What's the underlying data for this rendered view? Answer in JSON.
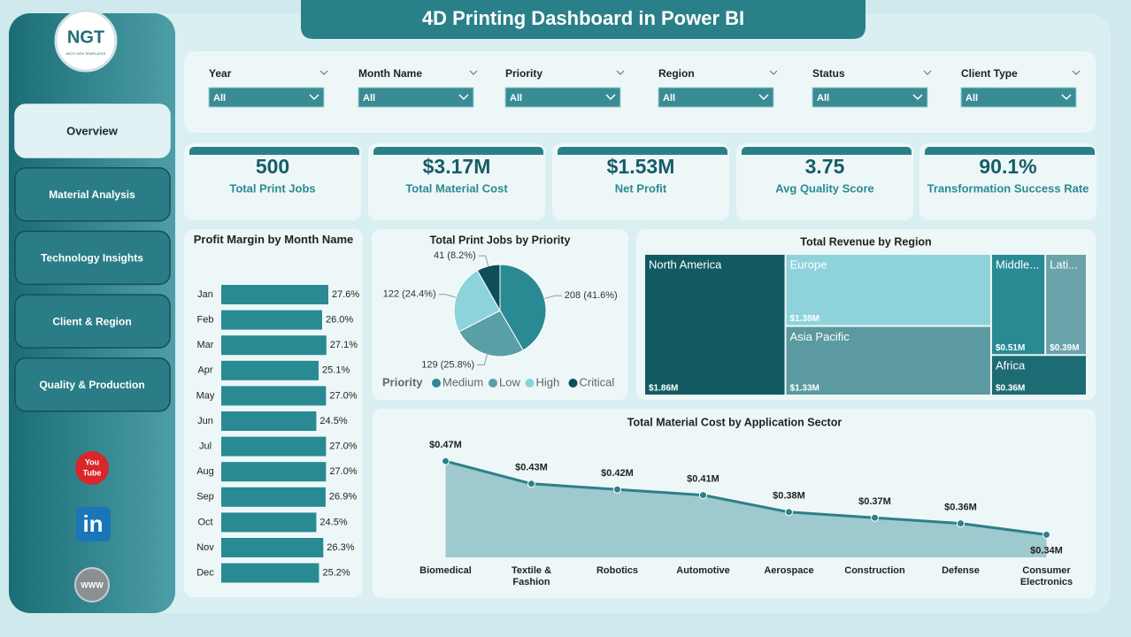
{
  "header": {
    "title": "4D Printing Dashboard in Power BI",
    "logo": "NGT",
    "logo_tagline": "NEXT GEN TEMPLATES"
  },
  "nav": {
    "items": [
      "Overview",
      "Material Analysis",
      "Technology Insights",
      "Client & Region",
      "Quality & Production"
    ],
    "active": 0
  },
  "social": {
    "youtube": [
      "You",
      "Tube"
    ],
    "linkedin": "in",
    "web": "WWW"
  },
  "filters": [
    {
      "label": "Year",
      "value": "All"
    },
    {
      "label": "Month Name",
      "value": "All"
    },
    {
      "label": "Priority",
      "value": "All"
    },
    {
      "label": "Region",
      "value": "All"
    },
    {
      "label": "Status",
      "value": "All"
    },
    {
      "label": "Client Type",
      "value": "All"
    }
  ],
  "kpis": [
    {
      "value": "500",
      "label": "Total Print Jobs"
    },
    {
      "value": "$3.17M",
      "label": "Total Material Cost"
    },
    {
      "value": "$1.53M",
      "label": "Net Profit"
    },
    {
      "value": "3.75",
      "label": "Avg Quality Score"
    },
    {
      "value": "90.1%",
      "label": "Transformation Success Rate"
    }
  ],
  "chart_data": [
    {
      "type": "bar",
      "orientation": "horizontal",
      "title": "Profit Margin by Month Name",
      "categories": [
        "Jan",
        "Feb",
        "Mar",
        "Apr",
        "May",
        "Jun",
        "Jul",
        "Aug",
        "Sep",
        "Oct",
        "Nov",
        "Dec"
      ],
      "values": [
        27.6,
        26.0,
        27.1,
        25.1,
        27.0,
        24.5,
        27.0,
        27.0,
        26.9,
        24.5,
        26.3,
        25.2
      ],
      "value_labels": [
        "27.6%",
        "26.0%",
        "27.1%",
        "25.1%",
        "27.0%",
        "24.5%",
        "27.0%",
        "27.0%",
        "26.9%",
        "24.5%",
        "26.3%",
        "25.2%"
      ],
      "color": "#2a8a93"
    },
    {
      "type": "pie",
      "title": "Total Print Jobs by Priority",
      "legend_title": "Priority",
      "categories": [
        "Medium",
        "Low",
        "High",
        "Critical"
      ],
      "values": [
        208,
        129,
        122,
        41
      ],
      "value_labels": [
        "208 (41.6%)",
        "129 (25.8%)",
        "122 (24.4%)",
        "41 (8.2%)"
      ],
      "colors": [
        "#2a8a93",
        "#5a9ea6",
        "#8dd3dc",
        "#0f4e58"
      ]
    },
    {
      "type": "treemap",
      "title": "Total Revenue by Region",
      "categories": [
        "North America",
        "Europe",
        "Asia Pacific",
        "Middle...",
        "Lati...",
        "Africa"
      ],
      "values": [
        1.86,
        1.38,
        1.33,
        0.51,
        0.39,
        0.36
      ],
      "value_labels": [
        "$1.86M",
        "$1.38M",
        "$1.33M",
        "$0.51M",
        "$0.39M",
        "$0.36M"
      ],
      "colors": [
        "#115a62",
        "#8ed3dc",
        "#5a9aa0",
        "#2a8a93",
        "#6aa3aa",
        "#1d6b73"
      ]
    },
    {
      "type": "area",
      "title": "Total Material Cost by Application Sector",
      "categories": [
        "Biomedical",
        "Textile & Fashion",
        "Robotics",
        "Automotive",
        "Aerospace",
        "Construction",
        "Defense",
        "Consumer Electronics"
      ],
      "values": [
        0.47,
        0.43,
        0.42,
        0.41,
        0.38,
        0.37,
        0.36,
        0.34
      ],
      "value_labels": [
        "$0.47M",
        "$0.43M",
        "$0.42M",
        "$0.41M",
        "$0.38M",
        "$0.37M",
        "$0.36M",
        "$0.34M"
      ],
      "color": "#2e7f88",
      "ylim": [
        0.3,
        0.5
      ]
    }
  ]
}
